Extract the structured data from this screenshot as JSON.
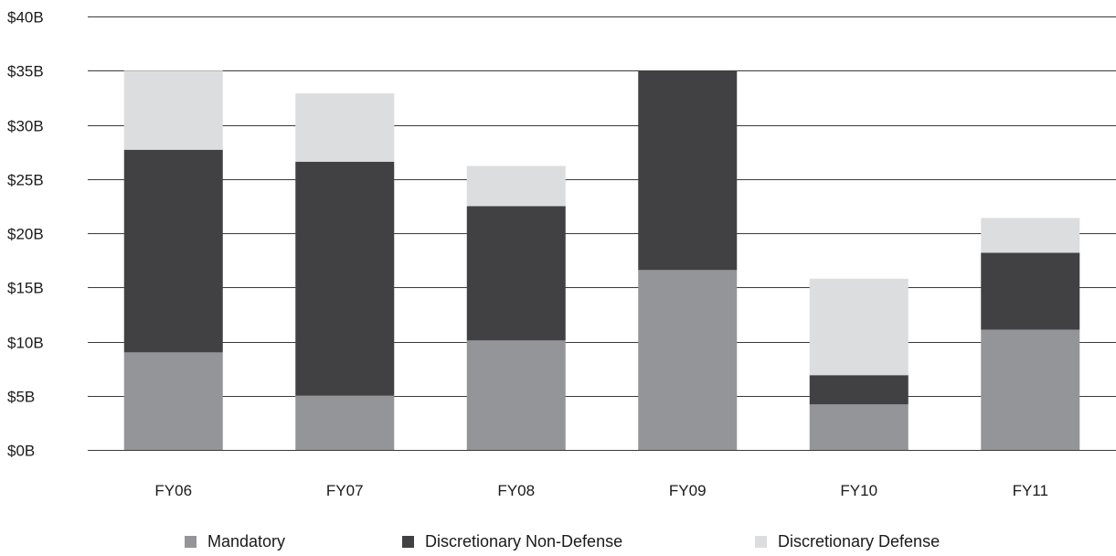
{
  "chart_data": {
    "type": "bar",
    "stacked": true,
    "categories": [
      "FY06",
      "FY07",
      "FY08",
      "FY09",
      "FY10",
      "FY11"
    ],
    "series": [
      {
        "name": "Mandatory",
        "color": "#939598",
        "values": [
          9.0,
          5.0,
          10.1,
          16.6,
          4.2,
          11.1
        ]
      },
      {
        "name": "Discretionary Non-Defense",
        "color": "#414143",
        "values": [
          18.7,
          21.6,
          12.4,
          18.4,
          2.7,
          7.1
        ]
      },
      {
        "name": "Discretionary Defense",
        "color": "#dcddde",
        "values": [
          7.3,
          6.3,
          3.7,
          0,
          8.9,
          3.2
        ]
      }
    ],
    "ylim": [
      0,
      40
    ],
    "yticks": [
      "$0B",
      "$5B",
      "$10B",
      "$15B",
      "$20B",
      "$25B",
      "$30B",
      "$35B",
      "$40B"
    ],
    "ytick_values": [
      0,
      5,
      10,
      15,
      20,
      25,
      30,
      35,
      40
    ],
    "grid": true,
    "legend_position": "bottom"
  }
}
